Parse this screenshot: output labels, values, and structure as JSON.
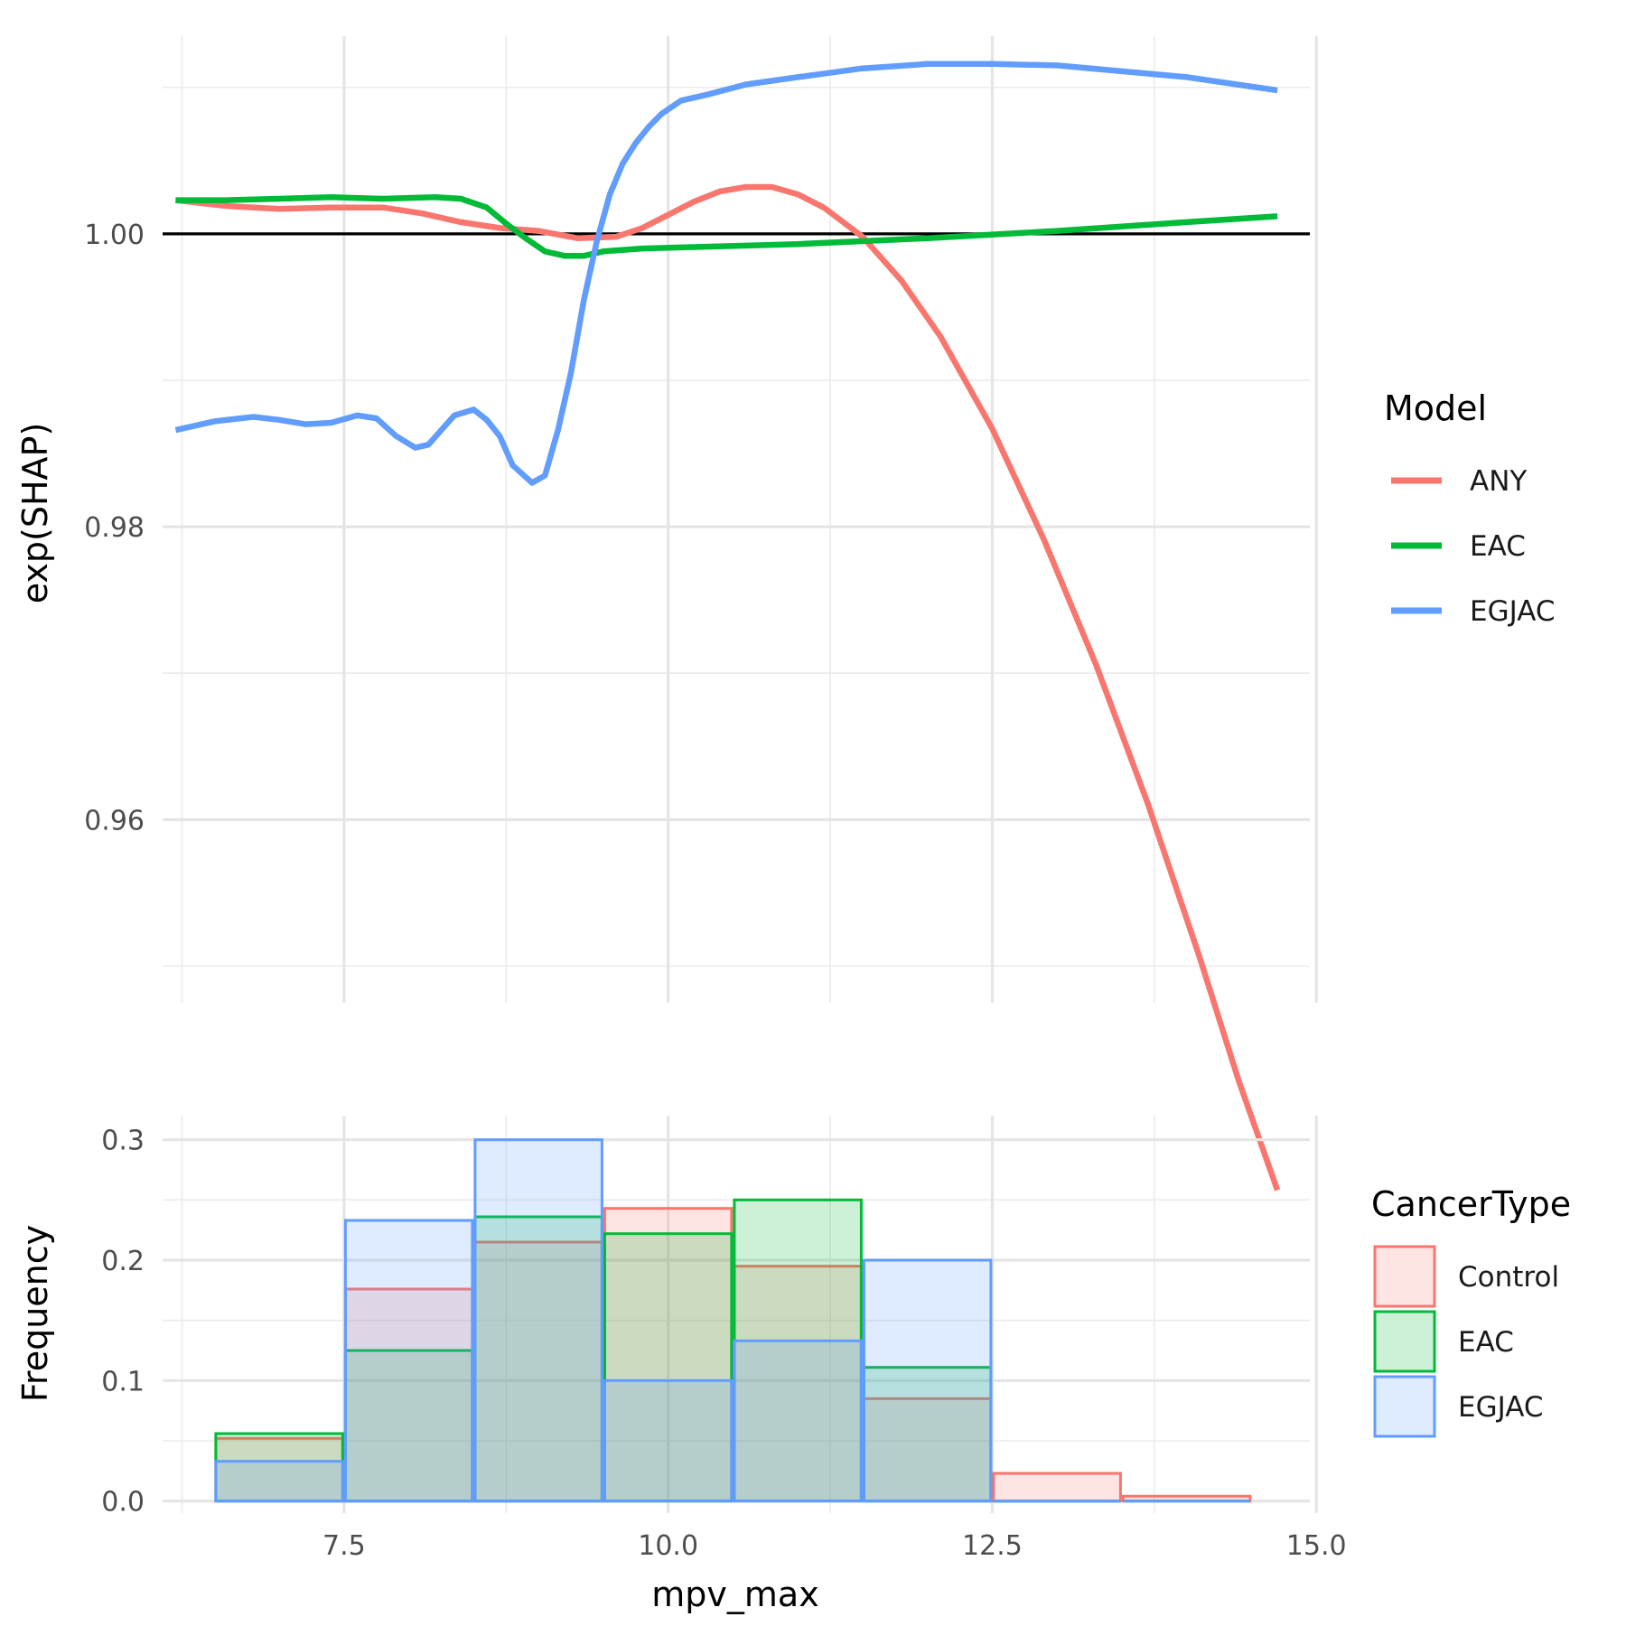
{
  "chart_data": [
    {
      "type": "line",
      "xlabel": "",
      "ylabel": "exp(SHAP)",
      "xlim": [
        6.1,
        14.95
      ],
      "ylim": [
        0.9475,
        1.0135
      ],
      "y_ticks": [
        0.96,
        0.98,
        1.0
      ],
      "y_tick_labels": [
        "0.96",
        "0.98",
        "1.00"
      ],
      "x_ticks": [
        7.5,
        10.0,
        12.5,
        15.0
      ],
      "x_tick_labels": [
        "",
        "",
        "",
        ""
      ],
      "grid": true,
      "reference_line": {
        "y": 1.0,
        "color": "#000000"
      },
      "legend": {
        "title": "Model",
        "position": "right",
        "entries": [
          "ANY",
          "EAC",
          "EGJAC"
        ]
      },
      "series": [
        {
          "name": "ANY",
          "color": "#F8766D",
          "x": [
            6.2,
            6.6,
            7.0,
            7.4,
            7.8,
            8.1,
            8.4,
            8.7,
            9.0,
            9.3,
            9.6,
            9.8,
            10.0,
            10.2,
            10.4,
            10.6,
            10.8,
            11.0,
            11.2,
            11.5,
            11.8,
            12.1,
            12.5,
            12.9,
            13.3,
            13.7,
            14.1,
            14.4,
            14.7
          ],
          "y": [
            1.0023,
            1.0019,
            1.0017,
            1.0018,
            1.0018,
            1.0014,
            1.0008,
            1.0004,
            1.0002,
            0.9997,
            0.9998,
            1.0004,
            1.0013,
            1.0022,
            1.0029,
            1.0032,
            1.0032,
            1.0027,
            1.0018,
            0.9998,
            0.9968,
            0.993,
            0.9867,
            0.9791,
            0.9706,
            0.9611,
            0.9506,
            0.9422,
            0.9347
          ]
        },
        {
          "name": "EAC",
          "color": "#00BA38",
          "x": [
            6.2,
            6.6,
            7.0,
            7.4,
            7.8,
            8.2,
            8.4,
            8.6,
            8.75,
            8.9,
            9.05,
            9.2,
            9.35,
            9.5,
            9.8,
            10.2,
            11.0,
            12.0,
            13.0,
            14.0,
            14.7
          ],
          "y": [
            1.0023,
            1.0023,
            1.0024,
            1.0025,
            1.0024,
            1.0025,
            1.0024,
            1.0018,
            1.0007,
            0.9997,
            0.9988,
            0.9985,
            0.9985,
            0.9988,
            0.999,
            0.9991,
            0.9993,
            0.9997,
            1.0002,
            1.0008,
            1.0012
          ]
        },
        {
          "name": "EGJAC",
          "color": "#619CFF",
          "x": [
            6.2,
            6.5,
            6.8,
            7.0,
            7.2,
            7.4,
            7.6,
            7.75,
            7.9,
            8.05,
            8.15,
            8.25,
            8.35,
            8.5,
            8.6,
            8.7,
            8.8,
            8.95,
            9.05,
            9.15,
            9.25,
            9.35,
            9.45,
            9.55,
            9.65,
            9.75,
            9.85,
            9.95,
            10.1,
            10.3,
            10.6,
            11.0,
            11.5,
            12.0,
            12.5,
            13.0,
            13.5,
            14.0,
            14.7
          ],
          "y": [
            0.9866,
            0.9872,
            0.9875,
            0.9873,
            0.987,
            0.9871,
            0.9876,
            0.9874,
            0.9862,
            0.9854,
            0.9856,
            0.9866,
            0.9876,
            0.988,
            0.9873,
            0.9862,
            0.9842,
            0.983,
            0.9835,
            0.9866,
            0.9905,
            0.9955,
            0.9995,
            1.0027,
            1.0048,
            1.0062,
            1.0073,
            1.0082,
            1.0091,
            1.0095,
            1.0102,
            1.0107,
            1.0113,
            1.0116,
            1.0116,
            1.0115,
            1.0111,
            1.0107,
            1.0098
          ]
        }
      ]
    },
    {
      "type": "bar",
      "xlabel": "mpv_max",
      "ylabel": "Frequency",
      "xlim": [
        6.1,
        14.95
      ],
      "ylim": [
        -0.01,
        0.32
      ],
      "x_ticks": [
        7.5,
        10.0,
        12.5,
        15.0
      ],
      "x_tick_labels": [
        "7.5",
        "10.0",
        "12.5",
        "15.0"
      ],
      "y_ticks": [
        0.0,
        0.1,
        0.2,
        0.3
      ],
      "y_tick_labels": [
        "0.0",
        "0.1",
        "0.2",
        "0.3"
      ],
      "grid": true,
      "legend": {
        "title": "CancerType",
        "position": "right",
        "entries": [
          "Control",
          "EAC",
          "EGJAC"
        ]
      },
      "bin_edges": [
        6.5,
        7.5,
        8.5,
        9.5,
        10.5,
        11.5,
        12.5,
        13.5,
        14.5
      ],
      "series": [
        {
          "name": "Control",
          "color": "#F8766D",
          "values": [
            0.052,
            0.176,
            0.215,
            0.243,
            0.195,
            0.085,
            0.023,
            0.004
          ]
        },
        {
          "name": "EAC",
          "color": "#00BA38",
          "values": [
            0.056,
            0.125,
            0.236,
            0.222,
            0.25,
            0.111,
            0.0,
            0.0
          ]
        },
        {
          "name": "EGJAC",
          "color": "#619CFF",
          "values": [
            0.033,
            0.233,
            0.3,
            0.1,
            0.133,
            0.2,
            0.0,
            0.0
          ]
        }
      ]
    }
  ]
}
